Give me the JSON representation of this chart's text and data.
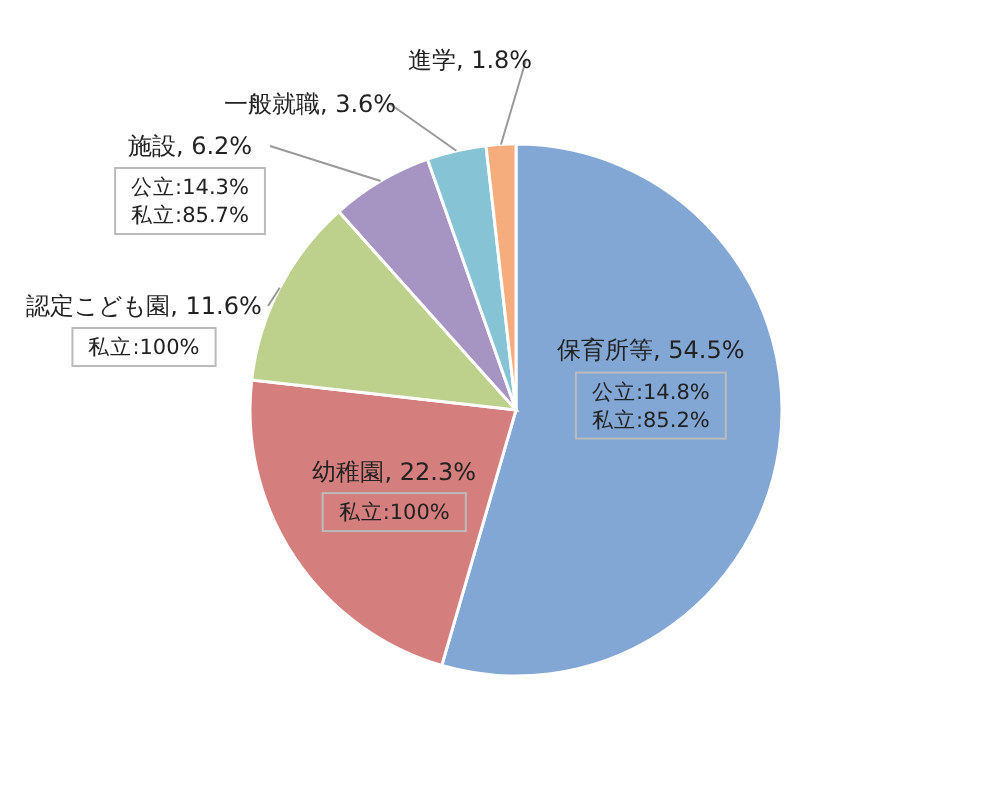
{
  "chart_data": {
    "type": "pie",
    "categories": [
      "保育所等",
      "幼稚園",
      "認定こども園",
      "施設",
      "一般就職",
      "進学"
    ],
    "values": [
      54.5,
      22.3,
      11.6,
      6.2,
      3.6,
      1.8
    ],
    "value_labels": [
      "54.5%",
      "22.3%",
      "11.6%",
      "6.2%",
      "3.6%",
      "1.8%"
    ],
    "colors": [
      "#82a7d4",
      "#d47f7d",
      "#bdd18d",
      "#a694c3",
      "#86c4d5",
      "#f6ad7d"
    ],
    "annotations": [
      {
        "text": "公立:14.8%\n私立:85.2%",
        "x": "保育所等"
      },
      {
        "text": "私立:100%",
        "x": "幼稚園"
      },
      {
        "text": "私立:100%",
        "x": "認定こども園"
      },
      {
        "text": "公立:14.3%\n私立:85.7%",
        "x": "施設"
      }
    ],
    "legend": false
  }
}
